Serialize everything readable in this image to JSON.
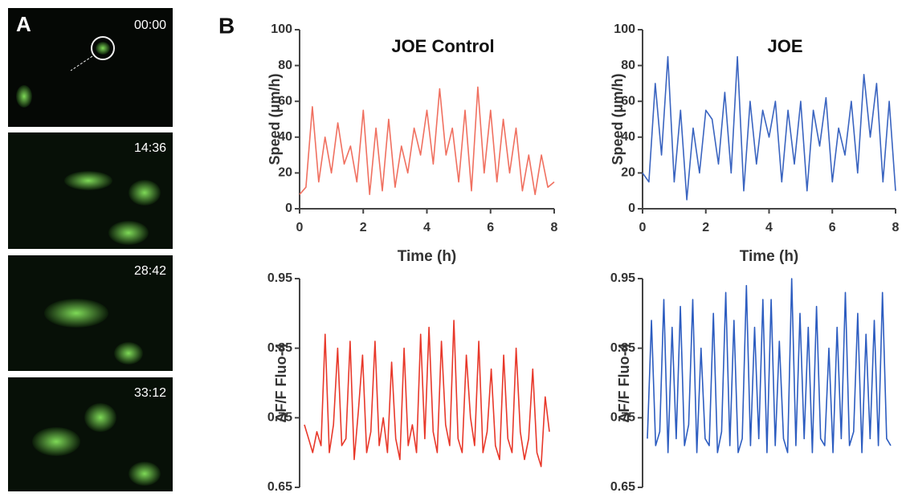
{
  "panels": {
    "a": {
      "label": "A",
      "timestamps": [
        "00:00",
        "14:36",
        "28:42",
        "33:12"
      ]
    },
    "b": {
      "label": "B"
    }
  },
  "chart_data": [
    {
      "type": "line",
      "title": "JOE Control",
      "xlabel": "Time (h)",
      "ylabel": "Speed (μm/h)",
      "color": "#f07060",
      "x": [
        0,
        0.2,
        0.4,
        0.6,
        0.8,
        1,
        1.2,
        1.4,
        1.6,
        1.8,
        2,
        2.2,
        2.4,
        2.6,
        2.8,
        3,
        3.2,
        3.4,
        3.6,
        3.8,
        4,
        4.2,
        4.4,
        4.6,
        4.8,
        5,
        5.2,
        5.4,
        5.6,
        5.8,
        6,
        6.2,
        6.4,
        6.6,
        6.8,
        7,
        7.2,
        7.4,
        7.6,
        7.8,
        8
      ],
      "values": [
        8,
        12,
        57,
        15,
        40,
        20,
        48,
        25,
        35,
        15,
        55,
        8,
        45,
        10,
        50,
        12,
        35,
        20,
        45,
        30,
        55,
        25,
        67,
        30,
        45,
        15,
        55,
        10,
        68,
        20,
        55,
        15,
        50,
        20,
        45,
        10,
        30,
        8,
        30,
        12,
        15
      ],
      "xlim": [
        0,
        8
      ],
      "xticks": [
        0,
        2,
        4,
        6,
        8
      ],
      "ylim": [
        0,
        100
      ],
      "yticks": [
        0,
        20,
        40,
        60,
        80,
        100
      ]
    },
    {
      "type": "line",
      "title": "JOE",
      "xlabel": "Time (h)",
      "ylabel": "Speed (μm/h)",
      "color": "#3a64c0",
      "x": [
        0,
        0.2,
        0.4,
        0.6,
        0.8,
        1,
        1.2,
        1.4,
        1.6,
        1.8,
        2,
        2.2,
        2.4,
        2.6,
        2.8,
        3,
        3.2,
        3.4,
        3.6,
        3.8,
        4,
        4.2,
        4.4,
        4.6,
        4.8,
        5,
        5.2,
        5.4,
        5.6,
        5.8,
        6,
        6.2,
        6.4,
        6.6,
        6.8,
        7,
        7.2,
        7.4,
        7.6,
        7.8,
        8
      ],
      "values": [
        20,
        15,
        70,
        30,
        85,
        15,
        55,
        5,
        45,
        20,
        55,
        50,
        25,
        65,
        20,
        85,
        10,
        60,
        25,
        55,
        40,
        60,
        15,
        55,
        25,
        60,
        10,
        55,
        35,
        62,
        15,
        45,
        30,
        60,
        20,
        75,
        40,
        70,
        15,
        60,
        10
      ],
      "xlim": [
        0,
        8
      ],
      "xticks": [
        0,
        2,
        4,
        6,
        8
      ],
      "ylim": [
        0,
        100
      ],
      "yticks": [
        0,
        20,
        40,
        60,
        80,
        100
      ]
    },
    {
      "type": "line",
      "ylabel": "ΔF/F Fluo-4",
      "color": "#e8382a",
      "values": [
        0.74,
        0.72,
        0.7,
        0.73,
        0.71,
        0.87,
        0.7,
        0.74,
        0.85,
        0.71,
        0.72,
        0.86,
        0.69,
        0.76,
        0.84,
        0.7,
        0.73,
        0.86,
        0.71,
        0.75,
        0.7,
        0.83,
        0.72,
        0.69,
        0.85,
        0.71,
        0.74,
        0.7,
        0.87,
        0.72,
        0.88,
        0.73,
        0.7,
        0.86,
        0.74,
        0.71,
        0.89,
        0.72,
        0.7,
        0.84,
        0.75,
        0.71,
        0.86,
        0.7,
        0.73,
        0.82,
        0.71,
        0.69,
        0.84,
        0.72,
        0.7,
        0.85,
        0.73,
        0.69,
        0.72,
        0.82,
        0.7,
        0.68,
        0.78,
        0.73
      ],
      "ylim": [
        0.65,
        0.95
      ],
      "yticks": [
        0.65,
        0.75,
        0.85,
        0.95
      ]
    },
    {
      "type": "line",
      "ylabel": "ΔF/F Fluo-4",
      "color": "#2c5cc0",
      "values": [
        0.72,
        0.89,
        0.71,
        0.73,
        0.92,
        0.7,
        0.88,
        0.72,
        0.91,
        0.71,
        0.74,
        0.92,
        0.7,
        0.85,
        0.72,
        0.71,
        0.9,
        0.7,
        0.73,
        0.93,
        0.71,
        0.89,
        0.7,
        0.72,
        0.94,
        0.71,
        0.88,
        0.72,
        0.92,
        0.7,
        0.92,
        0.71,
        0.86,
        0.72,
        0.7,
        0.95,
        0.71,
        0.9,
        0.72,
        0.88,
        0.7,
        0.91,
        0.72,
        0.71,
        0.85,
        0.7,
        0.88,
        0.72,
        0.93,
        0.71,
        0.73,
        0.9,
        0.7,
        0.87,
        0.72,
        0.89,
        0.71,
        0.93,
        0.72,
        0.71
      ],
      "ylim": [
        0.65,
        0.95
      ],
      "yticks": [
        0.65,
        0.75,
        0.85,
        0.95
      ]
    }
  ]
}
